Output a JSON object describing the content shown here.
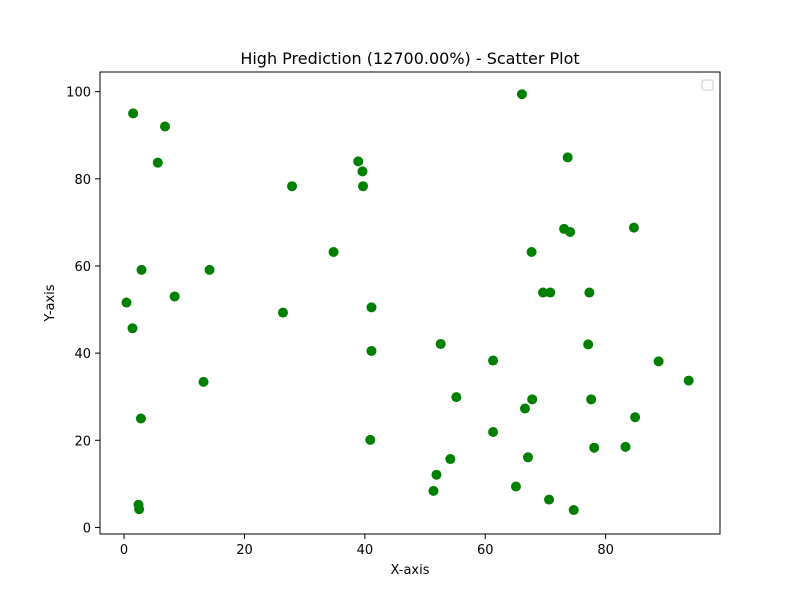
{
  "chart_data": {
    "type": "scatter",
    "title": "High Prediction (12700.00%) - Scatter Plot",
    "xlabel": "X-axis",
    "ylabel": "Y-axis",
    "xlim": [
      -4,
      99
    ],
    "ylim": [
      -1.5,
      104.5
    ],
    "x_ticks": [
      0,
      20,
      40,
      60,
      80
    ],
    "y_ticks": [
      0,
      20,
      40,
      60,
      80,
      100
    ],
    "grid": false,
    "legend": "top-right",
    "legend_entries": [],
    "series": [
      {
        "color": "#008000",
        "points": [
          [
            1.5,
            95
          ],
          [
            6.8,
            92
          ],
          [
            5.6,
            83.7
          ],
          [
            2.9,
            59.1
          ],
          [
            0.4,
            51.6
          ],
          [
            1.4,
            45.7
          ],
          [
            8.4,
            53
          ],
          [
            14.2,
            59.1
          ],
          [
            13.2,
            33.4
          ],
          [
            2.8,
            25
          ],
          [
            2.4,
            5.2
          ],
          [
            2.5,
            4.2
          ],
          [
            27.9,
            78.3
          ],
          [
            26.4,
            49.3
          ],
          [
            34.8,
            63.2
          ],
          [
            38.9,
            84
          ],
          [
            39.6,
            81.7
          ],
          [
            39.7,
            78.3
          ],
          [
            41.1,
            50.5
          ],
          [
            41.1,
            40.5
          ],
          [
            40.9,
            20.1
          ],
          [
            52.6,
            42.1
          ],
          [
            55.2,
            29.9
          ],
          [
            51.9,
            12.1
          ],
          [
            54.2,
            15.7
          ],
          [
            51.4,
            8.4
          ],
          [
            61.3,
            38.3
          ],
          [
            61.3,
            21.9
          ],
          [
            66.1,
            99.4
          ],
          [
            67.7,
            63.2
          ],
          [
            69.6,
            53.9
          ],
          [
            70.8,
            53.9
          ],
          [
            67.8,
            29.4
          ],
          [
            66.6,
            27.3
          ],
          [
            67.1,
            16.1
          ],
          [
            65.1,
            9.4
          ],
          [
            70.6,
            6.4
          ],
          [
            73.7,
            84.9
          ],
          [
            73.1,
            68.5
          ],
          [
            74.1,
            67.8
          ],
          [
            77.3,
            53.9
          ],
          [
            77.1,
            42
          ],
          [
            77.6,
            29.4
          ],
          [
            78.1,
            18.3
          ],
          [
            74.7,
            4
          ],
          [
            84.7,
            68.8
          ],
          [
            84.9,
            25.3
          ],
          [
            83.3,
            18.5
          ],
          [
            88.8,
            38.1
          ],
          [
            93.8,
            33.7
          ]
        ]
      }
    ]
  }
}
